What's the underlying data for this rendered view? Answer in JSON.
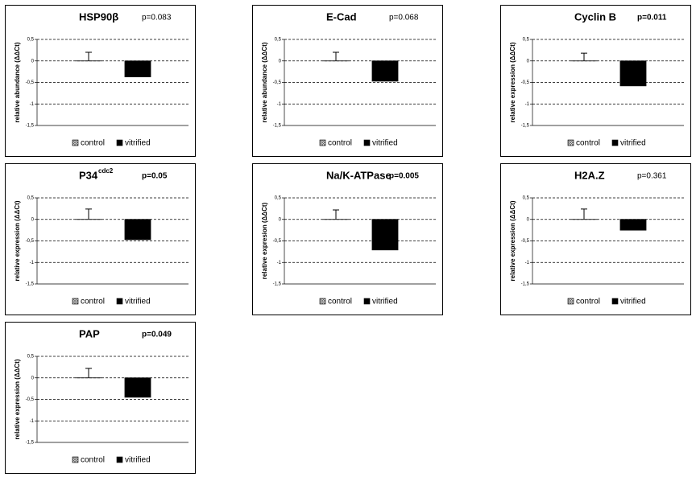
{
  "chart_data": [
    {
      "type": "bar",
      "title": "HSP90β",
      "annotation": "p=0.083",
      "annotation_bold": false,
      "ylabel": "relative abundance (ΔΔCt)",
      "ylim": [
        -1.5,
        0.5
      ],
      "yticks": [
        {
          "value": 0.5,
          "label": "0,5"
        },
        0,
        {
          "value": -0.5,
          "label": "-0,5"
        },
        -1,
        {
          "value": -1.5,
          "label": "-1,5"
        }
      ],
      "grid": true,
      "series": [
        {
          "name": "control",
          "color": "#8c8c8c",
          "hatch": true,
          "values": [
            0
          ],
          "errors": [
            0.2
          ]
        },
        {
          "name": "vitrified",
          "color": "#000000",
          "hatch": false,
          "values": [
            -0.37
          ],
          "errors": [
            0.08
          ]
        }
      ]
    },
    {
      "type": "bar",
      "title": "E-Cad",
      "annotation": "p=0.068",
      "annotation_bold": false,
      "ylabel": "relative abundance (ΔΔCt)",
      "ylim": [
        -1.5,
        0.5
      ],
      "yticks": [
        {
          "value": 0.5,
          "label": "0,5"
        },
        0,
        {
          "value": -0.5,
          "label": "-0,5"
        },
        -1,
        {
          "value": -1.5,
          "label": "-1,5"
        }
      ],
      "grid": true,
      "series": [
        {
          "name": "control",
          "color": "#8c8c8c",
          "hatch": true,
          "values": [
            0
          ],
          "errors": [
            0.2
          ]
        },
        {
          "name": "vitrified",
          "color": "#000000",
          "hatch": false,
          "values": [
            -0.47
          ],
          "errors": [
            0.12
          ]
        }
      ]
    },
    {
      "type": "bar",
      "title": "Cyclin B",
      "annotation": "p=0.011",
      "annotation_bold": true,
      "ylabel": "relative expression (ΔΔCt)",
      "ylim": [
        -1.5,
        0.5
      ],
      "yticks": [
        {
          "value": 0.5,
          "label": "0,5"
        },
        0,
        {
          "value": -0.5,
          "label": "-0,5"
        },
        -1,
        {
          "value": -1.5,
          "label": "-1,5"
        }
      ],
      "grid": true,
      "series": [
        {
          "name": "control",
          "color": "#8c8c8c",
          "hatch": true,
          "values": [
            0
          ],
          "errors": [
            0.18
          ]
        },
        {
          "name": "vitrified",
          "color": "#000000",
          "hatch": false,
          "values": [
            -0.58
          ],
          "errors": [
            0.1
          ]
        }
      ]
    },
    {
      "type": "bar",
      "title": "P34",
      "title_superscript": "cdc2",
      "annotation": "p=0.05",
      "annotation_bold": true,
      "ylabel": "relative expression (ΔΔCt)",
      "ylim": [
        -1.5,
        0.5
      ],
      "yticks": [
        {
          "value": 0.5,
          "label": "0,5"
        },
        0,
        {
          "value": -0.5,
          "label": "-0,5"
        },
        -1,
        {
          "value": -1.5,
          "label": "-1,5"
        }
      ],
      "grid": true,
      "series": [
        {
          "name": "control",
          "color": "#8c8c8c",
          "hatch": true,
          "values": [
            0
          ],
          "errors": [
            0.24
          ]
        },
        {
          "name": "vitrified",
          "color": "#000000",
          "hatch": false,
          "values": [
            -0.47
          ],
          "errors": [
            0.13
          ]
        }
      ]
    },
    {
      "type": "bar",
      "title": "Na/K-ATPase",
      "annotation": "p=0.005",
      "annotation_bold": true,
      "ylabel": "relative expresion (ΔΔCt)",
      "ylim": [
        -1.5,
        0.5
      ],
      "yticks": [
        {
          "value": 0.5,
          "label": "0,5"
        },
        0,
        {
          "value": -0.5,
          "label": "-0,5"
        },
        -1,
        {
          "value": -1.5,
          "label": "-1,5"
        }
      ],
      "grid": true,
      "series": [
        {
          "name": "control",
          "color": "#8c8c8c",
          "hatch": true,
          "values": [
            0
          ],
          "errors": [
            0.22
          ]
        },
        {
          "name": "vitrified",
          "color": "#000000",
          "hatch": false,
          "values": [
            -0.71
          ],
          "errors": [
            0.14
          ]
        }
      ]
    },
    {
      "type": "bar",
      "title": "H2A.Z",
      "annotation": "p=0.361",
      "annotation_bold": false,
      "ylabel": "relative expression (ΔΔCt)",
      "ylim": [
        -1.5,
        0.5
      ],
      "yticks": [
        {
          "value": 0.5,
          "label": "0,5"
        },
        0,
        {
          "value": -0.5,
          "label": "-0,5"
        },
        -1,
        {
          "value": -1.5,
          "label": "-1,5"
        }
      ],
      "grid": true,
      "series": [
        {
          "name": "control",
          "color": "#8c8c8c",
          "hatch": true,
          "values": [
            0
          ],
          "errors": [
            0.24
          ]
        },
        {
          "name": "vitrified",
          "color": "#000000",
          "hatch": false,
          "values": [
            -0.25
          ],
          "errors": [
            0.13
          ]
        }
      ]
    },
    {
      "type": "bar",
      "title": "PAP",
      "annotation": "p=0.049",
      "annotation_bold": true,
      "ylabel": "relative expression (ΔΔCt)",
      "ylim": [
        -1.5,
        0.5
      ],
      "yticks": [
        {
          "value": 0.5,
          "label": "0,5"
        },
        0,
        {
          "value": -0.5,
          "label": "-0,5"
        },
        -1,
        {
          "value": -1.5,
          "label": "-1,5"
        }
      ],
      "grid": true,
      "series": [
        {
          "name": "control",
          "color": "#8c8c8c",
          "hatch": true,
          "values": [
            0
          ],
          "errors": [
            0.22
          ]
        },
        {
          "name": "vitrified",
          "color": "#000000",
          "hatch": false,
          "values": [
            -0.45
          ],
          "errors": [
            0.12
          ]
        }
      ]
    }
  ]
}
